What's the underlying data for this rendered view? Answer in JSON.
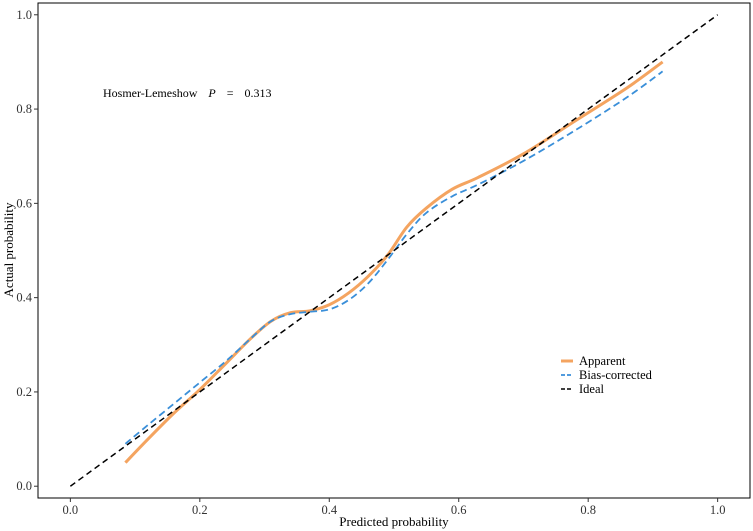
{
  "chart_data": {
    "type": "line",
    "title": "",
    "xlabel": "Predicted probability",
    "ylabel": "Actual probability",
    "xlim": [
      -0.05,
      1.05
    ],
    "ylim": [
      -0.025,
      1.025
    ],
    "xticks": [
      0.0,
      0.2,
      0.4,
      0.6,
      0.8,
      1.0
    ],
    "yticks": [
      0.0,
      0.2,
      0.4,
      0.6,
      0.8,
      1.0
    ],
    "xtick_labels": [
      "0.0",
      "0.2",
      "0.4",
      "0.6",
      "0.8",
      "1.0"
    ],
    "ytick_labels": [
      "0.0",
      "0.2",
      "0.4",
      "0.6",
      "0.8",
      "1.0"
    ],
    "grid": false,
    "legend_position": "bottom-right",
    "annotation": {
      "prefix": "Hosmer-Lemeshow",
      "stat": "P",
      "equals": "=",
      "value": "0.313"
    },
    "series": [
      {
        "name": "Apparent",
        "style": "solid",
        "color": "#F4A460",
        "x": [
          0.085,
          0.12,
          0.16,
          0.2,
          0.24,
          0.28,
          0.31,
          0.34,
          0.37,
          0.4,
          0.43,
          0.46,
          0.49,
          0.52,
          0.55,
          0.59,
          0.63,
          0.7,
          0.78,
          0.86,
          0.915
        ],
        "y": [
          0.05,
          0.1,
          0.155,
          0.205,
          0.26,
          0.315,
          0.35,
          0.368,
          0.372,
          0.385,
          0.41,
          0.445,
          0.49,
          0.55,
          0.59,
          0.63,
          0.655,
          0.705,
          0.775,
          0.845,
          0.9
        ]
      },
      {
        "name": "Bias-corrected",
        "style": "dashed",
        "color": "#3A8FD9",
        "x": [
          0.085,
          0.12,
          0.16,
          0.2,
          0.24,
          0.28,
          0.31,
          0.34,
          0.37,
          0.4,
          0.43,
          0.46,
          0.49,
          0.52,
          0.55,
          0.59,
          0.63,
          0.7,
          0.78,
          0.86,
          0.915
        ],
        "y": [
          0.09,
          0.13,
          0.175,
          0.22,
          0.265,
          0.315,
          0.35,
          0.365,
          0.37,
          0.375,
          0.395,
          0.43,
          0.48,
          0.535,
          0.58,
          0.615,
          0.64,
          0.69,
          0.755,
          0.825,
          0.88
        ]
      },
      {
        "name": "Ideal",
        "style": "dashed",
        "color": "#000000",
        "x": [
          0.0,
          1.0
        ],
        "y": [
          0.0,
          1.0
        ]
      }
    ]
  }
}
